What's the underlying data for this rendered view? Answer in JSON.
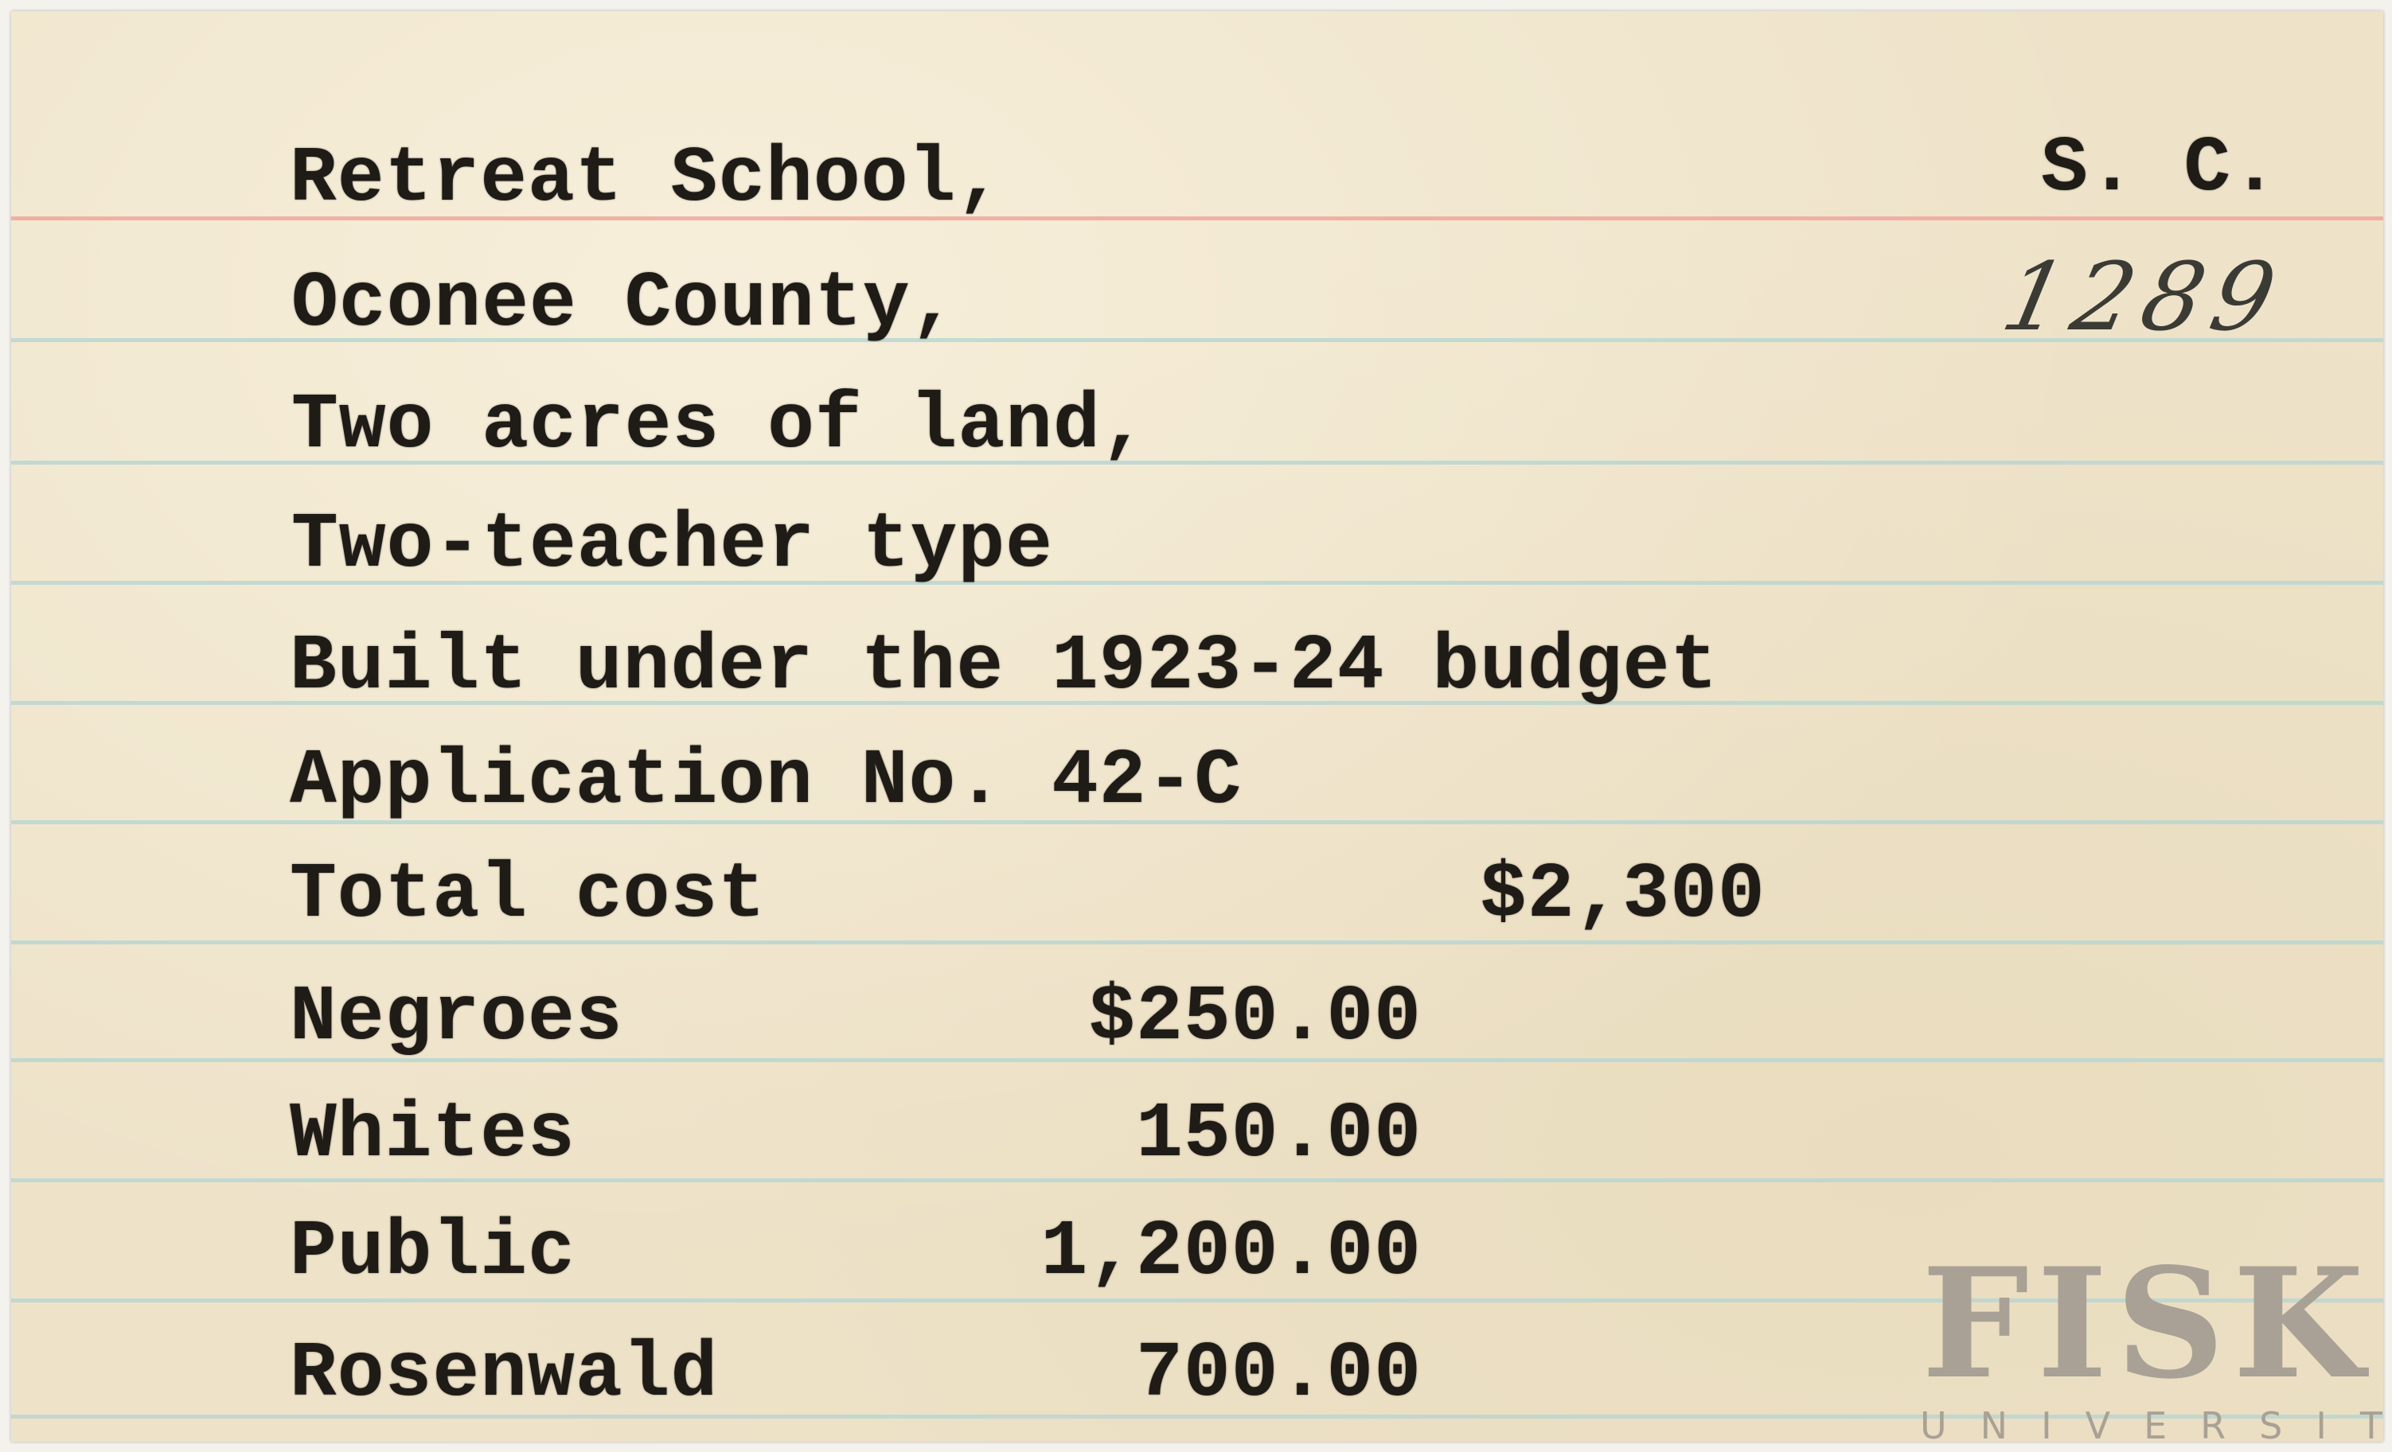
{
  "card": {
    "state": "S. C.",
    "card_number": "1289",
    "lines": [
      "Retreat School,",
      "Oconee County,",
      "Two acres of land,",
      "Two-teacher type",
      "Built under the 1923-24 budget",
      "Application No. 42-C"
    ],
    "total_cost": {
      "label": "Total cost",
      "amount": "$2,300"
    },
    "contributions": [
      {
        "label": "Negroes",
        "amount": "$250.00"
      },
      {
        "label": "Whites",
        "amount": "150.00"
      },
      {
        "label": "Public",
        "amount": "1,200.00"
      },
      {
        "label": "Rosenwald",
        "amount": "700.00"
      }
    ]
  },
  "watermark": {
    "name": "FISK",
    "subtitle": "UNIVERSITY"
  },
  "colors": {
    "paper": "#eee3c9",
    "red_rule": "#eea69c",
    "blue_rule": "#b9d6d2",
    "ink": "#1f1b17"
  }
}
